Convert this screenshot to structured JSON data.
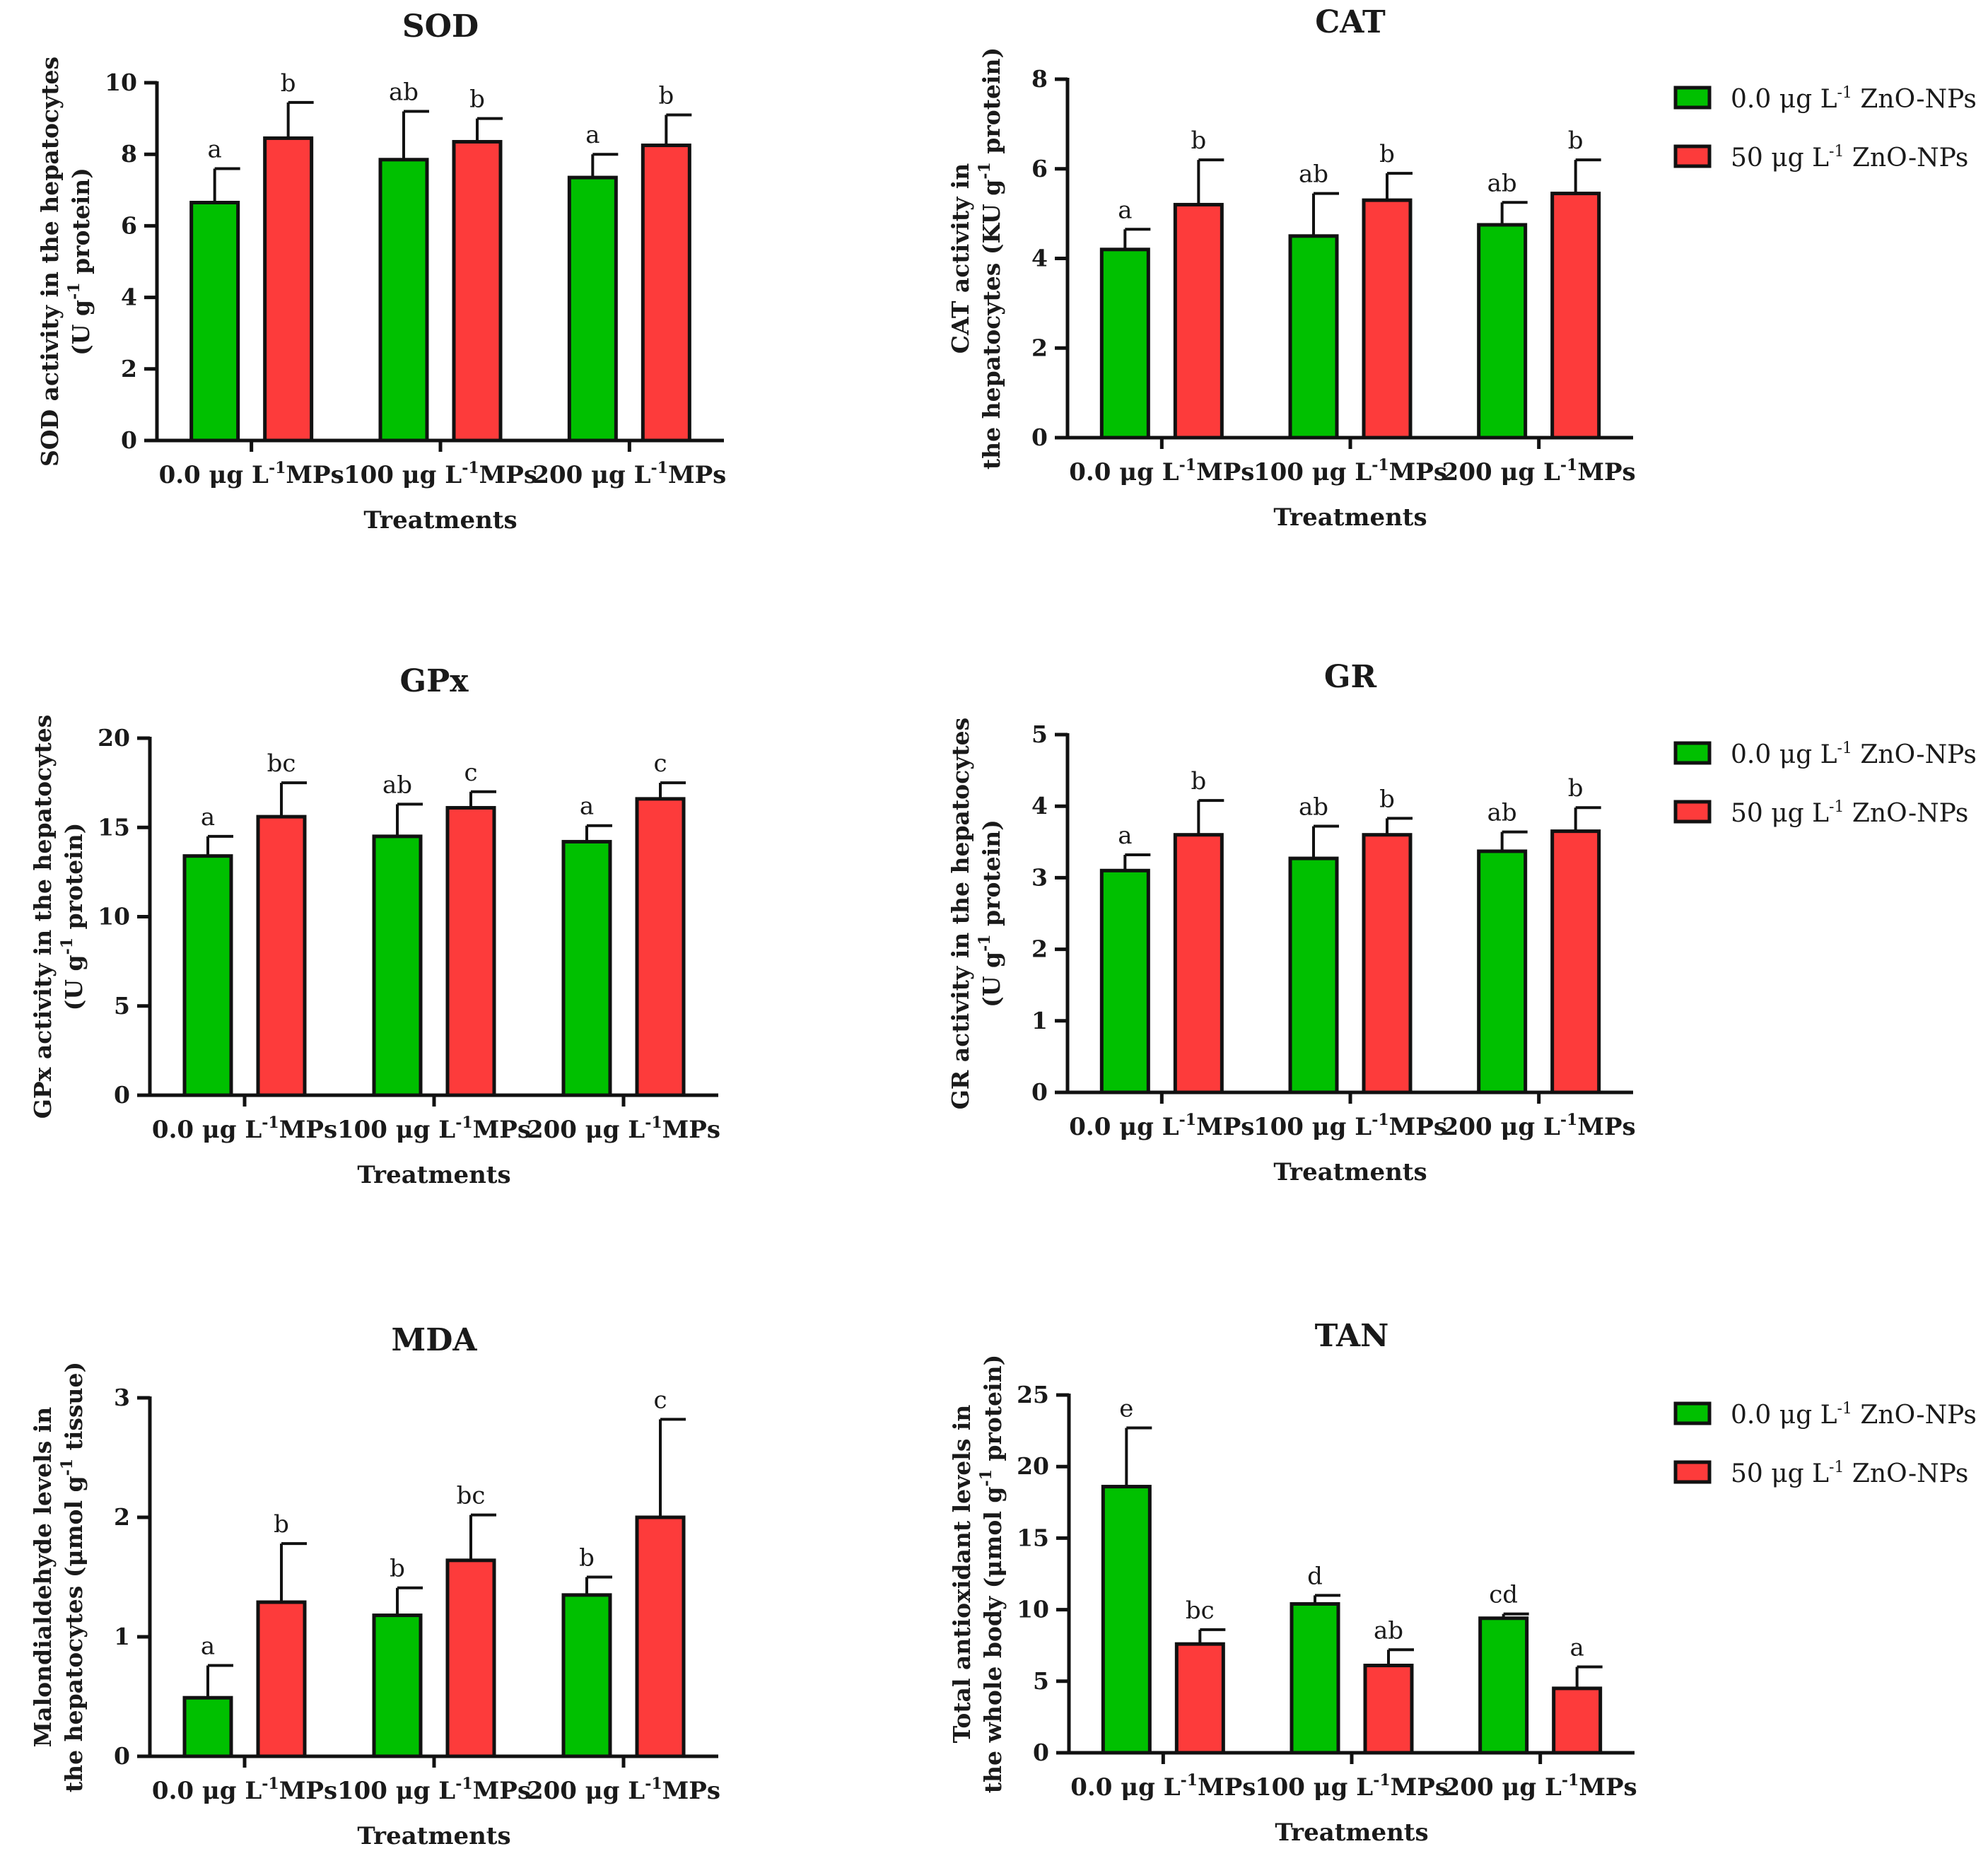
{
  "colors": {
    "green": "#00c000",
    "red": "#fd3b3b",
    "axis": "#111111"
  },
  "legend": [
    {
      "color": "#00c000",
      "pre": "0.0 μg L",
      "sup": "-1",
      "post": " ZnO-NPs"
    },
    {
      "color": "#fd3b3b",
      "pre": "50 μg L",
      "sup": "-1",
      "post": " ZnO-NPs"
    }
  ],
  "chart_data": [
    {
      "type": "bar",
      "title": "SOD",
      "ylabel_line1": "SOD activity in the hepatocytes",
      "ylabel_line2": {
        "pre": "(U g",
        "sup": "-1",
        "post": " protein)"
      },
      "xlabel": "Treatments",
      "categories": [
        {
          "pre": "0.0 μg L",
          "sup": "-1",
          "post": "MPs"
        },
        {
          "pre": "100 μg L",
          "sup": "-1",
          "post": "MPs"
        },
        {
          "pre": "200 μg L",
          "sup": "-1",
          "post": "MPs"
        }
      ],
      "ylim": [
        0,
        10
      ],
      "yticks": [
        "0",
        "2",
        "4",
        "6",
        "8",
        "10"
      ],
      "series": [
        {
          "values": [
            6.65,
            7.85,
            7.35
          ],
          "errors": [
            0.95,
            1.35,
            0.65
          ],
          "letters": [
            "a",
            "ab",
            "a"
          ]
        },
        {
          "values": [
            8.45,
            8.35,
            8.25
          ],
          "errors": [
            1.0,
            0.65,
            0.85
          ],
          "letters": [
            "b",
            "b",
            "b"
          ]
        }
      ],
      "show_legend": false
    },
    {
      "type": "bar",
      "title": "CAT",
      "ylabel_line1": "CAT activity in",
      "ylabel_line2": {
        "pre": "the hepatocytes (KU g",
        "sup": "-1",
        "post": " protein)"
      },
      "xlabel": "Treatments",
      "categories": [
        {
          "pre": "0.0 μg L",
          "sup": "-1",
          "post": "MPs"
        },
        {
          "pre": "100 μg L",
          "sup": "-1",
          "post": "MPs"
        },
        {
          "pre": "200 μg L",
          "sup": "-1",
          "post": "MPs"
        }
      ],
      "ylim": [
        0,
        8
      ],
      "yticks": [
        "0",
        "2",
        "4",
        "6",
        "8"
      ],
      "series": [
        {
          "values": [
            4.2,
            4.5,
            4.75
          ],
          "errors": [
            0.45,
            0.95,
            0.5
          ],
          "letters": [
            "a",
            "ab",
            "ab"
          ]
        },
        {
          "values": [
            5.2,
            5.3,
            5.45
          ],
          "errors": [
            1.0,
            0.6,
            0.75
          ],
          "letters": [
            "b",
            "b",
            "b"
          ]
        }
      ],
      "show_legend": true
    },
    {
      "type": "bar",
      "title": "GPx",
      "ylabel_line1": "GPx activity in the hepatocytes",
      "ylabel_line2": {
        "pre": "(U g",
        "sup": "-1",
        "post": " protein)"
      },
      "xlabel": "Treatments",
      "categories": [
        {
          "pre": "0.0 μg L",
          "sup": "-1",
          "post": "MPs"
        },
        {
          "pre": "100 μg L",
          "sup": "-1",
          "post": "MPs"
        },
        {
          "pre": "200 μg L",
          "sup": "-1",
          "post": "MPs"
        }
      ],
      "ylim": [
        0,
        20
      ],
      "yticks": [
        "0",
        "5",
        "10",
        "15",
        "20"
      ],
      "series": [
        {
          "values": [
            13.4,
            14.5,
            14.2
          ],
          "errors": [
            1.1,
            1.8,
            0.9
          ],
          "letters": [
            "a",
            "ab",
            "a"
          ]
        },
        {
          "values": [
            15.6,
            16.1,
            16.6
          ],
          "errors": [
            1.9,
            0.9,
            0.9
          ],
          "letters": [
            "bc",
            "c",
            "c"
          ]
        }
      ],
      "show_legend": false
    },
    {
      "type": "bar",
      "title": "GR",
      "ylabel_line1": "GR activity in the hepatocytes",
      "ylabel_line2": {
        "pre": "(U g",
        "sup": "-1",
        "post": " protein)"
      },
      "xlabel": "Treatments",
      "categories": [
        {
          "pre": "0.0 μg L",
          "sup": "-1",
          "post": "MPs"
        },
        {
          "pre": "100 μg L",
          "sup": "-1",
          "post": "MPs"
        },
        {
          "pre": "200 μg L",
          "sup": "-1",
          "post": "MPs"
        }
      ],
      "ylim": [
        0,
        5
      ],
      "yticks": [
        "0",
        "1",
        "2",
        "3",
        "4",
        "5"
      ],
      "series": [
        {
          "values": [
            3.1,
            3.27,
            3.37
          ],
          "errors": [
            0.22,
            0.45,
            0.27
          ],
          "letters": [
            "a",
            "ab",
            "ab"
          ]
        },
        {
          "values": [
            3.6,
            3.6,
            3.65
          ],
          "errors": [
            0.48,
            0.23,
            0.33
          ],
          "letters": [
            "b",
            "b",
            "b"
          ]
        }
      ],
      "show_legend": true
    },
    {
      "type": "bar",
      "title": "MDA",
      "ylabel_line1": "Malondialdehyde levels in",
      "ylabel_line2": {
        "pre": "the hepatocytes (μmol g",
        "sup": "-1",
        "post": " tissue)"
      },
      "xlabel": "Treatments",
      "categories": [
        {
          "pre": "0.0 μg L",
          "sup": "-1",
          "post": "MPs"
        },
        {
          "pre": "100 μg L",
          "sup": "-1",
          "post": "MPs"
        },
        {
          "pre": "200 μg L",
          "sup": "-1",
          "post": "MPs"
        }
      ],
      "ylim": [
        0,
        3
      ],
      "yticks": [
        "0",
        "1",
        "2",
        "3"
      ],
      "series": [
        {
          "values": [
            0.49,
            1.18,
            1.35
          ],
          "errors": [
            0.27,
            0.23,
            0.15
          ],
          "letters": [
            "a",
            "b",
            "b"
          ]
        },
        {
          "values": [
            1.29,
            1.64,
            2.0
          ],
          "errors": [
            0.49,
            0.38,
            0.82
          ],
          "letters": [
            "b",
            "bc",
            "c"
          ]
        }
      ],
      "show_legend": false
    },
    {
      "type": "bar",
      "title": "TAN",
      "ylabel_line1": "Total antioxidant levels in",
      "ylabel_line2": {
        "pre": "the whole body (μmol g",
        "sup": "-1",
        "post": " protein)"
      },
      "xlabel": "Treatments",
      "categories": [
        {
          "pre": "0.0 μg L",
          "sup": "-1",
          "post": "MPs"
        },
        {
          "pre": "100 μg L",
          "sup": "-1",
          "post": "MPs"
        },
        {
          "pre": "200 μg L",
          "sup": "-1",
          "post": "MPs"
        }
      ],
      "ylim": [
        0,
        25
      ],
      "yticks": [
        "0",
        "5",
        "10",
        "15",
        "20",
        "25"
      ],
      "series": [
        {
          "values": [
            18.6,
            10.4,
            9.4
          ],
          "errors": [
            4.1,
            0.6,
            0.3
          ],
          "letters": [
            "e",
            "d",
            "cd"
          ]
        },
        {
          "values": [
            7.6,
            6.1,
            4.5
          ],
          "errors": [
            1.0,
            1.1,
            1.5
          ],
          "letters": [
            "bc",
            "ab",
            "a"
          ]
        }
      ],
      "show_legend": true
    }
  ]
}
